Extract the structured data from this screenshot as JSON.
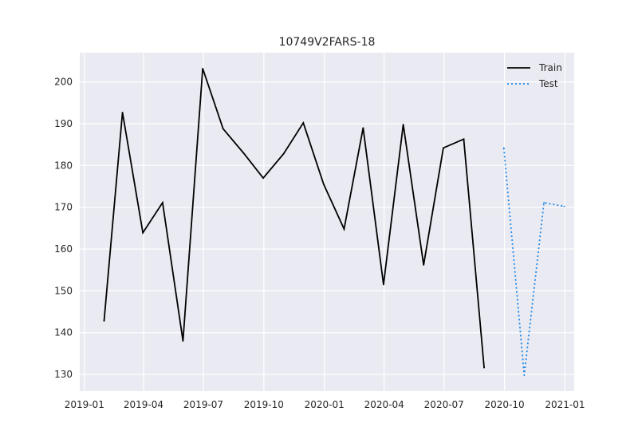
{
  "chart_data": {
    "type": "line",
    "title": "10749V2FARS-18",
    "xlabel": "",
    "ylabel": "",
    "x_axis_type": "date",
    "xlim": [
      "2018-12-25",
      "2021-01-15"
    ],
    "ylim": [
      126,
      207
    ],
    "x_ticks": [
      {
        "date": "2019-01-01",
        "label": "2019-01"
      },
      {
        "date": "2019-04-01",
        "label": "2019-04"
      },
      {
        "date": "2019-07-01",
        "label": "2019-07"
      },
      {
        "date": "2019-10-01",
        "label": "2019-10"
      },
      {
        "date": "2020-01-01",
        "label": "2020-01"
      },
      {
        "date": "2020-04-01",
        "label": "2020-04"
      },
      {
        "date": "2020-07-01",
        "label": "2020-07"
      },
      {
        "date": "2020-10-01",
        "label": "2020-10"
      },
      {
        "date": "2021-01-01",
        "label": "2021-01"
      }
    ],
    "y_ticks": [
      130,
      140,
      150,
      160,
      170,
      180,
      190,
      200
    ],
    "grid": true,
    "legend_position": "top-right",
    "series": [
      {
        "name": "Train",
        "color": "#000000",
        "style": "solid",
        "points": [
          {
            "x": "2019-01-31",
            "y": 142.8
          },
          {
            "x": "2019-02-28",
            "y": 192.7
          },
          {
            "x": "2019-03-31",
            "y": 163.9
          },
          {
            "x": "2019-04-30",
            "y": 171.1
          },
          {
            "x": "2019-05-31",
            "y": 138.0
          },
          {
            "x": "2019-06-30",
            "y": 203.2
          },
          {
            "x": "2019-07-31",
            "y": 188.8
          },
          {
            "x": "2019-08-31",
            "y": 183.0
          },
          {
            "x": "2019-09-30",
            "y": 177.0
          },
          {
            "x": "2019-10-31",
            "y": 182.8
          },
          {
            "x": "2019-11-30",
            "y": 190.2
          },
          {
            "x": "2019-12-31",
            "y": 175.5
          },
          {
            "x": "2020-01-31",
            "y": 164.8
          },
          {
            "x": "2020-02-29",
            "y": 189.0
          },
          {
            "x": "2020-03-31",
            "y": 151.5
          },
          {
            "x": "2020-04-30",
            "y": 189.8
          },
          {
            "x": "2020-05-31",
            "y": 156.2
          },
          {
            "x": "2020-06-30",
            "y": 184.2
          },
          {
            "x": "2020-07-31",
            "y": 186.3
          },
          {
            "x": "2020-08-31",
            "y": 131.6
          }
        ]
      },
      {
        "name": "Test",
        "color": "#1e88e5",
        "style": "dotted",
        "points": [
          {
            "x": "2020-09-30",
            "y": 184.2
          },
          {
            "x": "2020-10-31",
            "y": 129.8
          },
          {
            "x": "2020-11-30",
            "y": 171.1
          },
          {
            "x": "2020-12-31",
            "y": 170.2
          }
        ]
      }
    ]
  }
}
